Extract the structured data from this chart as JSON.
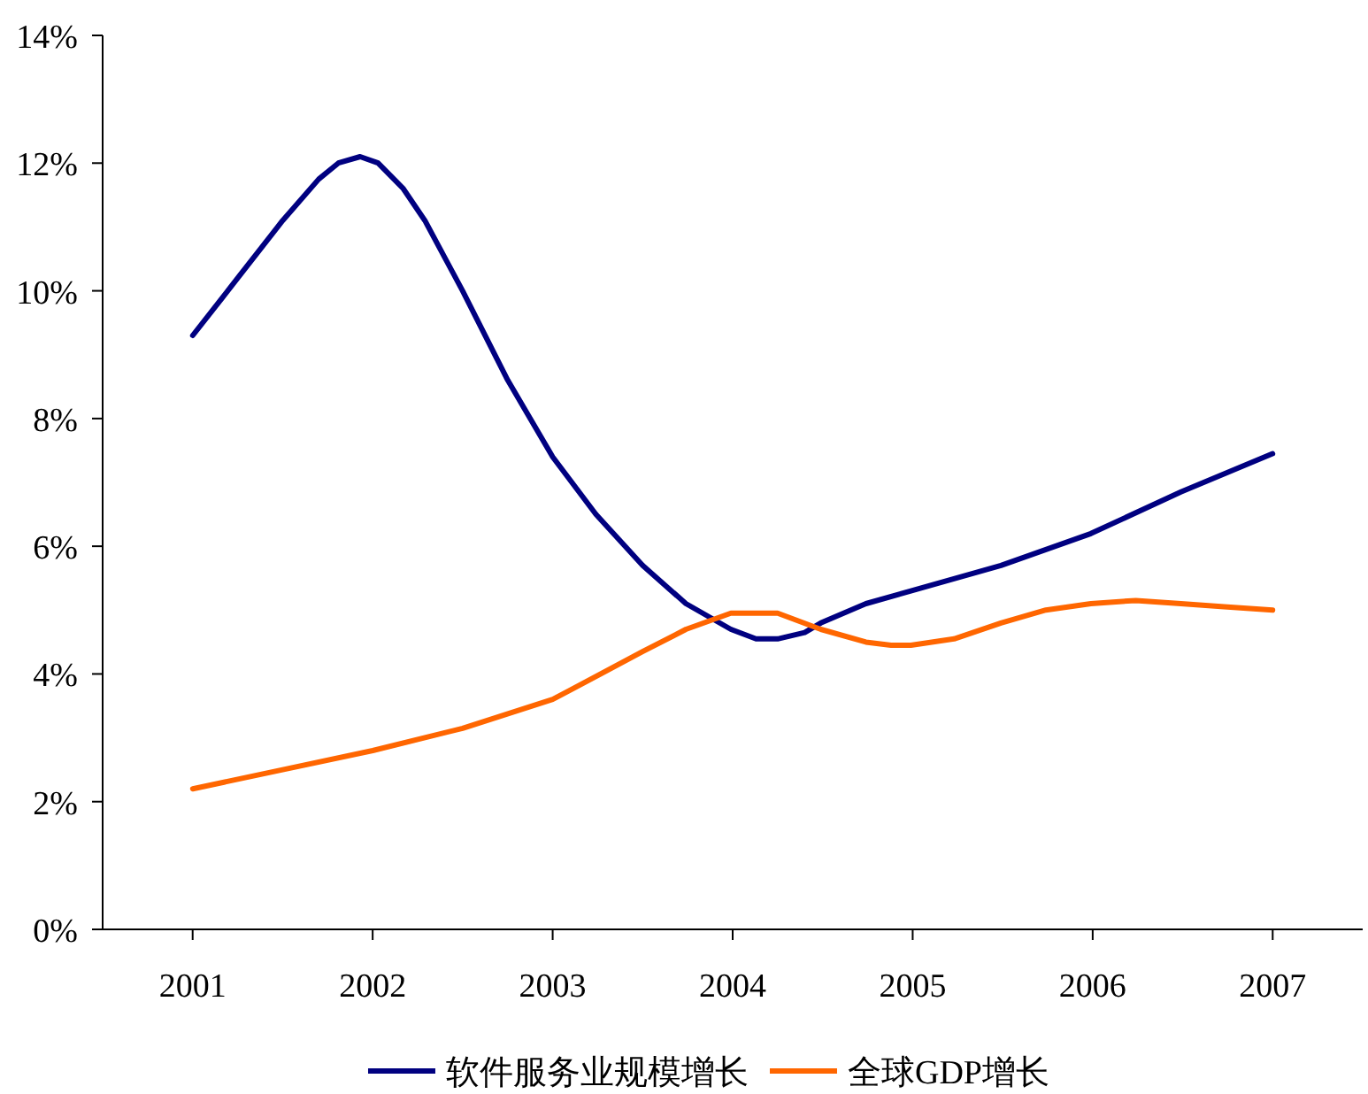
{
  "chart_data": {
    "type": "line",
    "legend": "bottom",
    "xlim": [
      2000.5,
      2007.5
    ],
    "xticks": [
      2001,
      2002,
      2003,
      2004,
      2005,
      2006,
      2007
    ],
    "ylim": [
      0,
      14
    ],
    "yticks": [
      {
        "value": 0,
        "label": "0%"
      },
      {
        "value": 2,
        "label": "2%"
      },
      {
        "value": 4,
        "label": "4%"
      },
      {
        "value": 6,
        "label": "6%"
      },
      {
        "value": 8,
        "label": "8%"
      },
      {
        "value": 10,
        "label": "10%"
      },
      {
        "value": 12,
        "label": "12%"
      },
      {
        "value": 14,
        "label": "14%"
      }
    ],
    "series": [
      {
        "name": "软件服务业规模增长",
        "color": "#000080",
        "x": [
          2001,
          2001.25,
          2001.5,
          2001.7,
          2001.81,
          2001.93,
          2002.03,
          2002.17,
          2002.29,
          2002.5,
          2002.75,
          2003,
          2003.24,
          2003.5,
          2003.74,
          2003.99,
          2004.13,
          2004.25,
          2004.4,
          2004.49,
          2004.74,
          2004.99,
          2005.49,
          2005.99,
          2006.49,
          2007
        ],
        "values": [
          9.3,
          10.2,
          11.1,
          11.75,
          12.0,
          12.1,
          12.0,
          11.6,
          11.1,
          10.0,
          8.6,
          7.4,
          6.5,
          5.7,
          5.1,
          4.7,
          4.55,
          4.55,
          4.65,
          4.8,
          5.1,
          5.3,
          5.7,
          6.2,
          6.85,
          7.45
        ]
      },
      {
        "name": "全球GDP增长",
        "color": "#ff6600",
        "x": [
          2001,
          2001.5,
          2002,
          2002.5,
          2003,
          2003.1,
          2003.5,
          2003.74,
          2003.99,
          2004.25,
          2004.49,
          2004.74,
          2004.88,
          2004.99,
          2005.23,
          2005.49,
          2005.74,
          2005.99,
          2006.24,
          2006.49,
          2006.73,
          2007
        ],
        "values": [
          2.2,
          2.5,
          2.8,
          3.15,
          3.6,
          3.75,
          4.35,
          4.7,
          4.95,
          4.95,
          4.7,
          4.5,
          4.45,
          4.45,
          4.55,
          4.8,
          5.0,
          5.1,
          5.15,
          5.1,
          5.05,
          5.0
        ]
      }
    ]
  }
}
